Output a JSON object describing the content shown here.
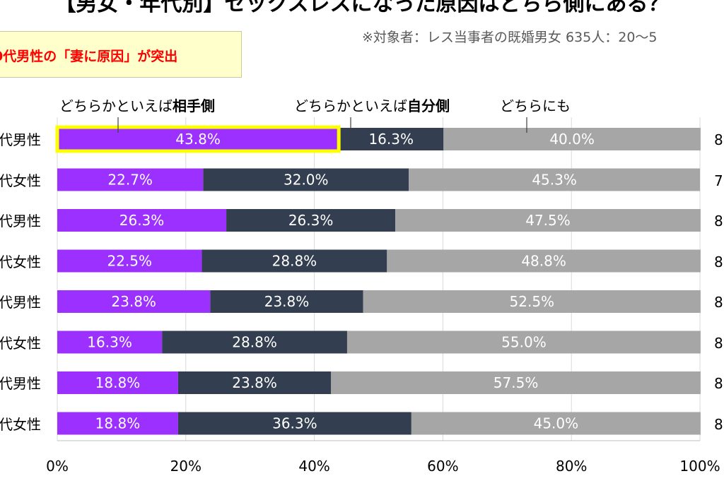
{
  "chart_data": {
    "type": "bar",
    "orientation": "horizontal",
    "stacked": true,
    "title": "【男女・年代別】セックスレスになった原因はどちら側にある？",
    "subtitle": "※対象者：レス当事者の既婚男女 635人：20〜5",
    "callout": "0代男性の「妻に原因」が突出",
    "categories": [
      "代男性",
      "代女性",
      "代男性",
      "代女性",
      "代男性",
      "代女性",
      "代男性",
      "代女性"
    ],
    "count_labels": [
      "8",
      "7",
      "8",
      "8",
      "8",
      "8",
      "8",
      "8"
    ],
    "series": [
      {
        "name": "どちらかといえば相手側",
        "name_prefix": "どちらかといえば",
        "name_bold": "相手側",
        "color": "#9b30ff",
        "values": [
          43.8,
          22.7,
          26.3,
          22.5,
          23.8,
          16.3,
          18.8,
          18.8
        ],
        "labels": [
          "43.8%",
          "22.7%",
          "26.3%",
          "22.5%",
          "23.8%",
          "16.3%",
          "18.8%",
          "18.8%"
        ]
      },
      {
        "name": "どちらかといえば自分側",
        "name_prefix": "どちらかといえば",
        "name_bold": "自分側",
        "color": "#333f50",
        "values": [
          16.3,
          32.0,
          26.3,
          28.8,
          23.8,
          28.8,
          23.8,
          36.3
        ],
        "labels": [
          "16.3%",
          "32.0%",
          "26.3%",
          "28.8%",
          "23.8%",
          "28.8%",
          "23.8%",
          "36.3%"
        ]
      },
      {
        "name": "どちらにも",
        "name_prefix": "どちらにも",
        "name_bold": "",
        "color": "#a6a6a6",
        "values": [
          40.0,
          45.3,
          47.5,
          48.8,
          52.5,
          55.0,
          57.5,
          45.0
        ],
        "labels": [
          "40.0%",
          "45.3%",
          "47.5%",
          "48.8%",
          "52.5%",
          "55.0%",
          "57.5%",
          "45.0%"
        ]
      }
    ],
    "highlight": {
      "row": 0,
      "series": 0,
      "color": "#ffff00"
    },
    "xlim": [
      0,
      100
    ],
    "xticks": [
      0,
      20,
      40,
      60,
      80,
      100
    ],
    "xtick_labels": [
      "0%",
      "20%",
      "40%",
      "60%",
      "80%",
      "100%"
    ],
    "grid": true
  }
}
